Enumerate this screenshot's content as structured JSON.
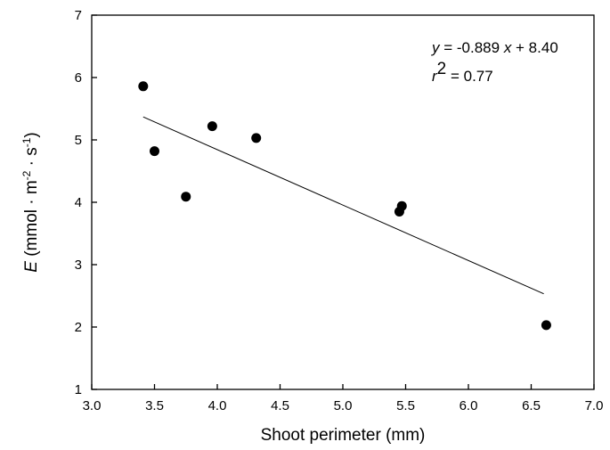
{
  "chart_data": {
    "type": "scatter",
    "title": "",
    "xlabel": "Shoot perimeter (mm)",
    "ylabel": {
      "var": "E",
      "pre": " (mmol · m",
      "exp1": "-2",
      "mid": " · s",
      "exp2": "-1",
      "post": ")"
    },
    "xlim": [
      3.0,
      7.0
    ],
    "ylim": [
      1,
      7
    ],
    "xticks": [
      3.0,
      3.5,
      4.0,
      4.5,
      5.0,
      5.5,
      6.0,
      6.5,
      7.0
    ],
    "xtick_labels": [
      "3.0",
      "3.5",
      "4.0",
      "4.5",
      "5.0",
      "5.5",
      "6.0",
      "6.5",
      "7.0"
    ],
    "yticks": [
      1,
      2,
      3,
      4,
      5,
      6,
      7
    ],
    "ytick_labels": [
      "1",
      "2",
      "3",
      "4",
      "5",
      "6",
      "7"
    ],
    "grid": false,
    "points": [
      {
        "x": 3.41,
        "y": 5.86
      },
      {
        "x": 3.5,
        "y": 4.82
      },
      {
        "x": 3.75,
        "y": 4.09
      },
      {
        "x": 3.96,
        "y": 5.22
      },
      {
        "x": 4.31,
        "y": 5.03
      },
      {
        "x": 5.45,
        "y": 3.85
      },
      {
        "x": 5.47,
        "y": 3.94
      },
      {
        "x": 6.62,
        "y": 2.03
      }
    ],
    "fit_line": {
      "slope": -0.889,
      "intercept": 8.4,
      "x_start": 3.41,
      "x_end": 6.6
    },
    "annotation": {
      "line1_var_y": "y",
      "line1_mid": " = -0.889 ",
      "line1_var_x": "x",
      "line1_end": " + 8.40",
      "line2_var": "r",
      "line2_exp": "2",
      "line2_end": " = 0.77"
    }
  }
}
